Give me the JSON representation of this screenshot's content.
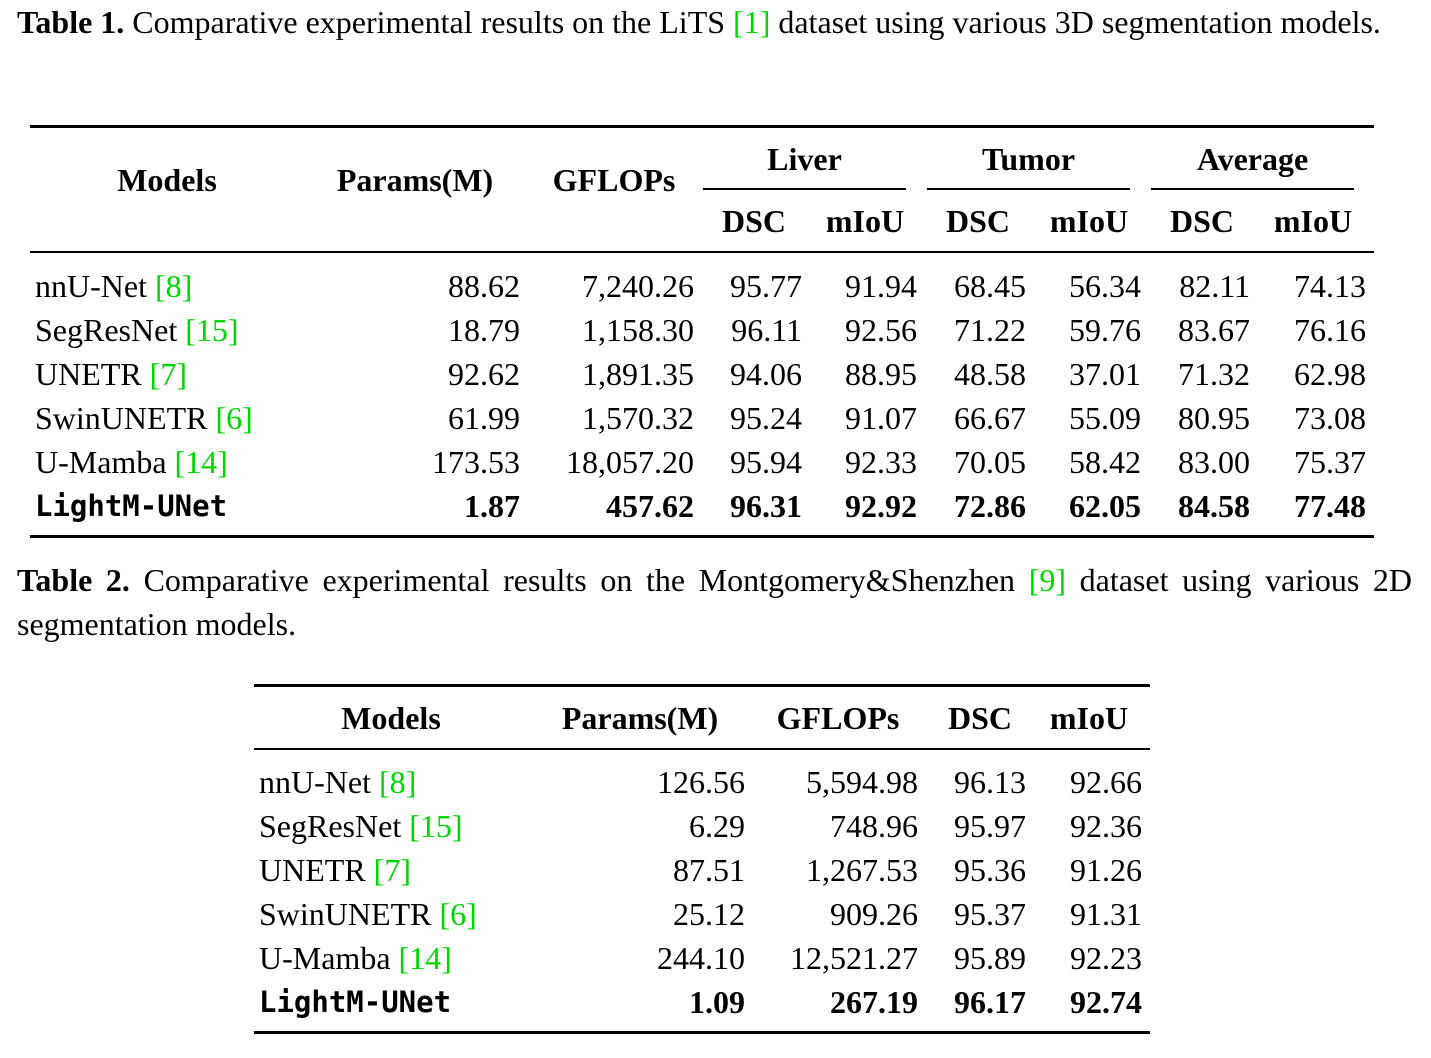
{
  "table1": {
    "caption_label": "Table 1.",
    "caption_pre": " Comparative experimental results on the LiTS ",
    "caption_ref": "[1]",
    "caption_post": " dataset using various 3D segmentation models.",
    "headers": {
      "models": "Models",
      "params": "Params(M)",
      "gflops": "GFLOPs",
      "liver": "Liver",
      "tumor": "Tumor",
      "average": "Average",
      "dsc": "DSC",
      "miou": "mIoU"
    },
    "rows": [
      {
        "name": "nnU-Net ",
        "ref": "[8]",
        "params": "88.62",
        "gflops": "7,240.26",
        "liver_dsc": "95.77",
        "liver_miou": "91.94",
        "tumor_dsc": "68.45",
        "tumor_miou": "56.34",
        "avg_dsc": "82.11",
        "avg_miou": "74.13"
      },
      {
        "name": "SegResNet ",
        "ref": "[15]",
        "params": "18.79",
        "gflops": "1,158.30",
        "liver_dsc": "96.11",
        "liver_miou": "92.56",
        "tumor_dsc": "71.22",
        "tumor_miou": "59.76",
        "avg_dsc": "83.67",
        "avg_miou": "76.16"
      },
      {
        "name": "UNETR ",
        "ref": "[7]",
        "params": "92.62",
        "gflops": "1,891.35",
        "liver_dsc": "94.06",
        "liver_miou": "88.95",
        "tumor_dsc": "48.58",
        "tumor_miou": "37.01",
        "avg_dsc": "71.32",
        "avg_miou": "62.98"
      },
      {
        "name": "SwinUNETR ",
        "ref": "[6]",
        "params": "61.99",
        "gflops": "1,570.32",
        "liver_dsc": "95.24",
        "liver_miou": "91.07",
        "tumor_dsc": "66.67",
        "tumor_miou": "55.09",
        "avg_dsc": "80.95",
        "avg_miou": "73.08"
      },
      {
        "name": "U-Mamba ",
        "ref": "[14]",
        "params": "173.53",
        "gflops": "18,057.20",
        "liver_dsc": "95.94",
        "liver_miou": "92.33",
        "tumor_dsc": "70.05",
        "tumor_miou": "58.42",
        "avg_dsc": "83.00",
        "avg_miou": "75.37"
      },
      {
        "name": "LightM-UNet",
        "ref": "",
        "params": "1.87",
        "gflops": "457.62",
        "liver_dsc": "96.31",
        "liver_miou": "92.92",
        "tumor_dsc": "72.86",
        "tumor_miou": "62.05",
        "avg_dsc": "84.58",
        "avg_miou": "77.48"
      }
    ]
  },
  "table2": {
    "caption_label": "Table 2.",
    "caption_pre": " Comparative experimental results on the Montgomery&Shenzhen ",
    "caption_ref": "[9]",
    "caption_post": " dataset using various 2D segmentation models.",
    "headers": {
      "models": "Models",
      "params": "Params(M)",
      "gflops": "GFLOPs",
      "dsc": "DSC",
      "miou": "mIoU"
    },
    "rows": [
      {
        "name": "nnU-Net ",
        "ref": "[8]",
        "params": "126.56",
        "gflops": "5,594.98",
        "dsc": "96.13",
        "miou": "92.66"
      },
      {
        "name": "SegResNet ",
        "ref": "[15]",
        "params": "6.29",
        "gflops": "748.96",
        "dsc": "95.97",
        "miou": "92.36"
      },
      {
        "name": "UNETR ",
        "ref": "[7]",
        "params": "87.51",
        "gflops": "1,267.53",
        "dsc": "95.36",
        "miou": "91.26"
      },
      {
        "name": "SwinUNETR ",
        "ref": "[6]",
        "params": "25.12",
        "gflops": "909.26",
        "dsc": "95.37",
        "miou": "91.31"
      },
      {
        "name": "U-Mamba ",
        "ref": "[14]",
        "params": "244.10",
        "gflops": "12,521.27",
        "dsc": "95.89",
        "miou": "92.23"
      },
      {
        "name": "LightM-UNet",
        "ref": "",
        "params": "1.09",
        "gflops": "267.19",
        "dsc": "96.17",
        "miou": "92.74"
      }
    ]
  }
}
